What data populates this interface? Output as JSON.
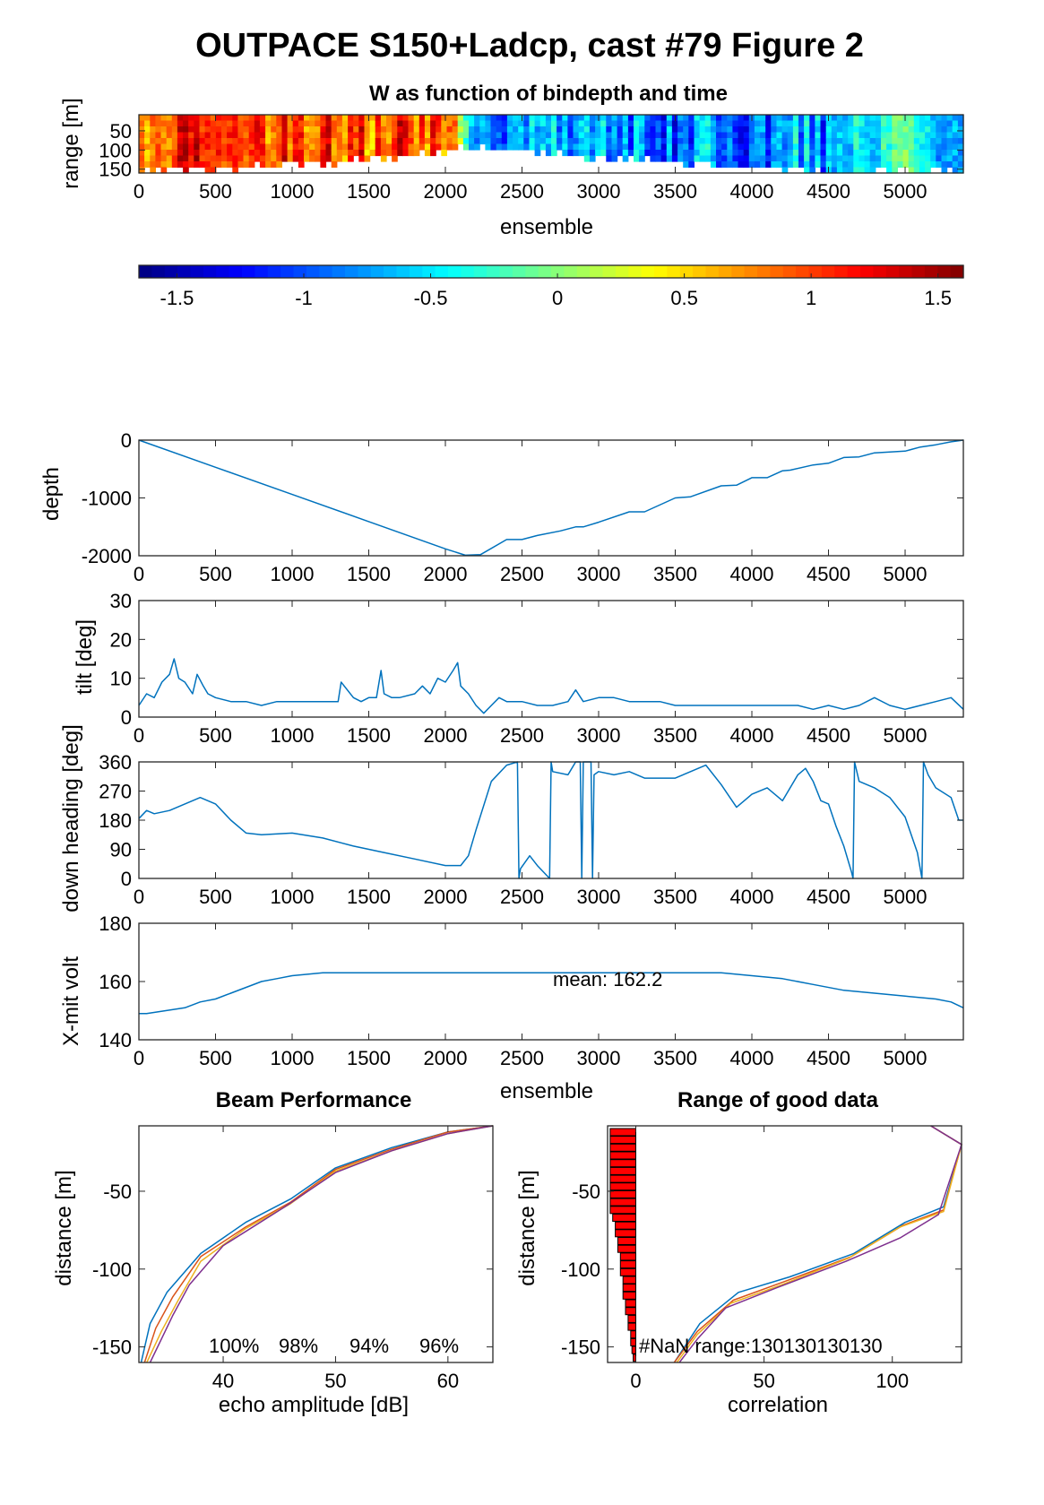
{
  "figure": {
    "title": "OUTPACE S150+Ladcp, cast #79 Figure 2"
  },
  "colors": {
    "line": "#0072BD",
    "bar": "#ff0000",
    "axis": "#262626",
    "beams": [
      "#0072BD",
      "#D95319",
      "#EDB120",
      "#7E2F8E"
    ]
  },
  "chart_data": [
    {
      "id": "w-image",
      "type": "heatmap",
      "title": "W as function of bindepth and time",
      "xlabel": "ensemble",
      "ylabel": "range [m]",
      "xlim": [
        0,
        5380
      ],
      "ylim": [
        160,
        8
      ],
      "xticks": [
        0,
        500,
        1000,
        1500,
        2000,
        2500,
        3000,
        3500,
        4000,
        4500,
        5000
      ],
      "yticks": [
        50,
        100,
        150
      ],
      "colormap": "jet",
      "clim": [
        -1.65,
        1.6
      ],
      "colorbar_ticks": [
        -1.5,
        -1,
        -0.5,
        0,
        0.5,
        1,
        1.5
      ],
      "mean_w_by_ensemble": {
        "x": [
          0,
          250,
          500,
          750,
          1000,
          1250,
          1500,
          1750,
          2000,
          2100,
          2250,
          2500,
          2750,
          3000,
          3250,
          3500,
          3750,
          4000,
          4250,
          4500,
          4750,
          5000,
          5250,
          5380
        ],
        "w": [
          0.9,
          1.0,
          1.1,
          1.1,
          1.0,
          1.05,
          0.95,
          1.0,
          0.9,
          0.3,
          -0.9,
          -0.6,
          -0.7,
          -0.6,
          -0.8,
          -0.9,
          -0.7,
          -1.0,
          -0.6,
          -0.8,
          -0.4,
          -0.3,
          -0.5,
          -0.4
        ]
      },
      "good_range_by_ensemble": {
        "x": [
          0,
          500,
          1000,
          1500,
          2000,
          2100,
          2500,
          3000,
          3500,
          4000,
          4500,
          5000,
          5380
        ],
        "range": [
          155,
          150,
          140,
          125,
          105,
          95,
          105,
          120,
          130,
          145,
          160,
          150,
          160
        ]
      }
    },
    {
      "id": "depth",
      "type": "line",
      "ylabel": "depth",
      "xlim": [
        0,
        5380
      ],
      "ylim": [
        -2000,
        0
      ],
      "xticks": [
        0,
        500,
        1000,
        1500,
        2000,
        2500,
        3000,
        3500,
        4000,
        4500,
        5000
      ],
      "yticks": [
        0,
        -1000,
        -2000
      ],
      "x": [
        0,
        500,
        1000,
        1500,
        2000,
        2130,
        2230,
        2400,
        2500,
        2600,
        2750,
        2850,
        2900,
        3000,
        3200,
        3300,
        3500,
        3600,
        3800,
        3900,
        4000,
        4100,
        4200,
        4250,
        4400,
        4500,
        4600,
        4700,
        4800,
        5000,
        5100,
        5200,
        5300,
        5380
      ],
      "y": [
        0,
        -470,
        -940,
        -1410,
        -1880,
        -1990,
        -1980,
        -1720,
        -1720,
        -1650,
        -1570,
        -1500,
        -1500,
        -1420,
        -1240,
        -1240,
        -1000,
        -980,
        -790,
        -780,
        -650,
        -650,
        -530,
        -520,
        -430,
        -400,
        -300,
        -290,
        -220,
        -190,
        -120,
        -80,
        -30,
        0
      ]
    },
    {
      "id": "tilt",
      "type": "line",
      "ylabel": "tilt [deg]",
      "xlim": [
        0,
        5380
      ],
      "ylim": [
        0,
        30
      ],
      "xticks": [
        0,
        500,
        1000,
        1500,
        2000,
        2500,
        3000,
        3500,
        4000,
        4500,
        5000
      ],
      "yticks": [
        0,
        10,
        20,
        30
      ],
      "x": [
        0,
        50,
        100,
        150,
        200,
        230,
        260,
        300,
        350,
        380,
        420,
        450,
        500,
        600,
        700,
        800,
        900,
        1000,
        1100,
        1200,
        1300,
        1320,
        1400,
        1450,
        1500,
        1550,
        1580,
        1600,
        1650,
        1700,
        1800,
        1850,
        1900,
        1950,
        2000,
        2050,
        2080,
        2100,
        2150,
        2200,
        2250,
        2300,
        2350,
        2400,
        2500,
        2600,
        2700,
        2800,
        2850,
        2900,
        3000,
        3100,
        3200,
        3300,
        3400,
        3500,
        3700,
        3900,
        4100,
        4300,
        4400,
        4500,
        4600,
        4700,
        4800,
        4900,
        5000,
        5100,
        5200,
        5300,
        5380
      ],
      "y": [
        3,
        6,
        5,
        9,
        11,
        15,
        10,
        9,
        6,
        11,
        8,
        6,
        5,
        4,
        4,
        3,
        4,
        4,
        4,
        4,
        4,
        9,
        5,
        4,
        5,
        5,
        12,
        6,
        5,
        5,
        6,
        8,
        6,
        10,
        9,
        12,
        14,
        8,
        6,
        3,
        1,
        3,
        5,
        4,
        4,
        3,
        3,
        4,
        7,
        4,
        5,
        5,
        4,
        4,
        4,
        3,
        3,
        3,
        3,
        3,
        2,
        3,
        2,
        3,
        5,
        3,
        2,
        3,
        4,
        5,
        2
      ]
    },
    {
      "id": "heading",
      "type": "line",
      "ylabel": "down heading [deg]",
      "xlim": [
        0,
        5380
      ],
      "ylim": [
        0,
        360
      ],
      "xticks": [
        0,
        500,
        1000,
        1500,
        2000,
        2500,
        3000,
        3500,
        4000,
        4500,
        5000
      ],
      "yticks": [
        0,
        90,
        180,
        270,
        360
      ],
      "x": [
        0,
        50,
        100,
        200,
        300,
        400,
        500,
        600,
        700,
        800,
        1000,
        1200,
        1400,
        1600,
        1800,
        2000,
        2100,
        2150,
        2200,
        2300,
        2400,
        2470,
        2480,
        2490,
        2550,
        2600,
        2680,
        2690,
        2700,
        2800,
        2850,
        2880,
        2890,
        2900,
        2950,
        2960,
        2970,
        3000,
        3100,
        3200,
        3300,
        3500,
        3600,
        3700,
        3800,
        3900,
        4000,
        4100,
        4200,
        4300,
        4350,
        4400,
        4450,
        4500,
        4550,
        4600,
        4650,
        4660,
        4670,
        4700,
        4800,
        4900,
        5000,
        5080,
        5110,
        5120,
        5150,
        5200,
        5300,
        5350,
        5380
      ],
      "y": [
        185,
        210,
        200,
        210,
        230,
        250,
        230,
        180,
        140,
        135,
        140,
        125,
        100,
        80,
        60,
        40,
        40,
        70,
        150,
        300,
        350,
        360,
        0,
        30,
        70,
        40,
        0,
        360,
        330,
        320,
        360,
        360,
        0,
        360,
        360,
        0,
        320,
        330,
        320,
        330,
        310,
        310,
        330,
        350,
        290,
        220,
        260,
        280,
        240,
        320,
        340,
        300,
        240,
        230,
        160,
        100,
        20,
        0,
        360,
        300,
        280,
        250,
        190,
        80,
        0,
        360,
        320,
        280,
        250,
        180,
        180
      ]
    },
    {
      "id": "xmit-volt",
      "type": "line",
      "ylabel": "X-mit volt",
      "xlabel": "ensemble",
      "xlim": [
        0,
        5380
      ],
      "ylim": [
        140,
        180
      ],
      "xticks": [
        0,
        500,
        1000,
        1500,
        2000,
        2500,
        3000,
        3500,
        4000,
        4500,
        5000
      ],
      "yticks": [
        140,
        160,
        180
      ],
      "annotation": "mean: 162.2",
      "x": [
        0,
        50,
        300,
        400,
        500,
        600,
        700,
        800,
        900,
        1000,
        1200,
        1300,
        2000,
        3000,
        3800,
        4000,
        4200,
        4400,
        4600,
        4800,
        5000,
        5200,
        5300,
        5380
      ],
      "y": [
        149,
        149,
        151,
        153,
        154,
        156,
        158,
        160,
        161,
        162,
        163,
        163,
        163,
        163,
        163,
        162,
        161,
        159,
        157,
        156,
        155,
        154,
        153,
        151
      ]
    },
    {
      "id": "beam-performance",
      "type": "line",
      "title": "Beam Performance",
      "xlabel": "echo amplitude [dB]",
      "ylabel": "distance [m]",
      "xlim": [
        32.5,
        64
      ],
      "ylim": [
        -160,
        -8
      ],
      "xticks": [
        40,
        50,
        60
      ],
      "yticks": [
        -50,
        -100,
        -150
      ],
      "series": [
        {
          "values": [
            [
              64,
              -8
            ],
            [
              60,
              -12
            ],
            [
              55,
              -22
            ],
            [
              50,
              -35
            ],
            [
              46,
              -55
            ],
            [
              42,
              -70
            ],
            [
              38,
              -90
            ],
            [
              35,
              -115
            ],
            [
              33.5,
              -135
            ],
            [
              32.7,
              -160
            ]
          ]
        },
        {
          "values": [
            [
              64,
              -8
            ],
            [
              60,
              -12
            ],
            [
              55,
              -23
            ],
            [
              50,
              -36
            ],
            [
              46,
              -57
            ],
            [
              42,
              -73
            ],
            [
              38,
              -92
            ],
            [
              35.5,
              -118
            ],
            [
              34,
              -138
            ],
            [
              33,
              -160
            ]
          ]
        },
        {
          "values": [
            [
              64,
              -8
            ],
            [
              60,
              -13
            ],
            [
              55,
              -24
            ],
            [
              50,
              -37
            ],
            [
              46,
              -58
            ],
            [
              42,
              -74
            ],
            [
              38,
              -95
            ],
            [
              36,
              -120
            ],
            [
              34.5,
              -140
            ],
            [
              33.2,
              -160
            ]
          ]
        },
        {
          "values": [
            [
              64,
              -8
            ],
            [
              60,
              -13
            ],
            [
              55,
              -24
            ],
            [
              50,
              -38
            ],
            [
              45.5,
              -60
            ],
            [
              40,
              -85
            ],
            [
              37,
              -110
            ],
            [
              35.5,
              -130
            ],
            [
              34.5,
              -145
            ],
            [
              33.5,
              -160
            ]
          ]
        }
      ],
      "beam_percentages": [
        "100%",
        "98%",
        "94%",
        "96%"
      ]
    },
    {
      "id": "range-good-data",
      "type": "line",
      "title": "Range of good data",
      "xlabel": "correlation",
      "ylabel": "distance [m]",
      "xlim": [
        -11,
        127
      ],
      "ylim": [
        -160,
        -8
      ],
      "xticks": [
        0,
        50,
        100
      ],
      "yticks": [
        -50,
        -100,
        -150
      ],
      "annotation": "#NaN range:130130130130",
      "nan_bars": {
        "y": [
          -12,
          -17,
          -22,
          -27,
          -32,
          -37,
          -42,
          -47,
          -52,
          -57,
          -62,
          -67,
          -72,
          -77,
          -82,
          -87,
          -92,
          -97,
          -102,
          -107,
          -112,
          -117,
          -122,
          -127,
          -132,
          -137,
          -142,
          -147,
          -152,
          -157
        ],
        "width": [
          10,
          10,
          10,
          10,
          10,
          10,
          10,
          10,
          10,
          10,
          10,
          9,
          8,
          8,
          7,
          7,
          6,
          6,
          6,
          5,
          5,
          5,
          4,
          4,
          3,
          3,
          2,
          2,
          1.5,
          1
        ]
      },
      "series": [
        {
          "values": [
            [
              115,
              -8
            ],
            [
              127,
              -20
            ],
            [
              120,
              -60
            ],
            [
              105,
              -70
            ],
            [
              85,
              -90
            ],
            [
              60,
              -105
            ],
            [
              40,
              -115
            ],
            [
              25,
              -135
            ],
            [
              15,
              -160
            ]
          ]
        },
        {
          "values": [
            [
              115,
              -8
            ],
            [
              127,
              -20
            ],
            [
              120,
              -62
            ],
            [
              104,
              -72
            ],
            [
              84,
              -92
            ],
            [
              58,
              -108
            ],
            [
              38,
              -120
            ],
            [
              24,
              -140
            ],
            [
              15,
              -160
            ]
          ]
        },
        {
          "values": [
            [
              115,
              -8
            ],
            [
              127,
              -20
            ],
            [
              120,
              -63
            ],
            [
              103,
              -73
            ],
            [
              83,
              -93
            ],
            [
              57,
              -110
            ],
            [
              37,
              -122
            ],
            [
              24,
              -142
            ],
            [
              16,
              -160
            ]
          ]
        },
        {
          "values": [
            [
              115,
              -8
            ],
            [
              127,
              -20
            ],
            [
              118,
              -65
            ],
            [
              103,
              -80
            ],
            [
              82,
              -95
            ],
            [
              55,
              -112
            ],
            [
              35,
              -125
            ],
            [
              24,
              -145
            ],
            [
              17,
              -160
            ]
          ]
        }
      ]
    }
  ]
}
